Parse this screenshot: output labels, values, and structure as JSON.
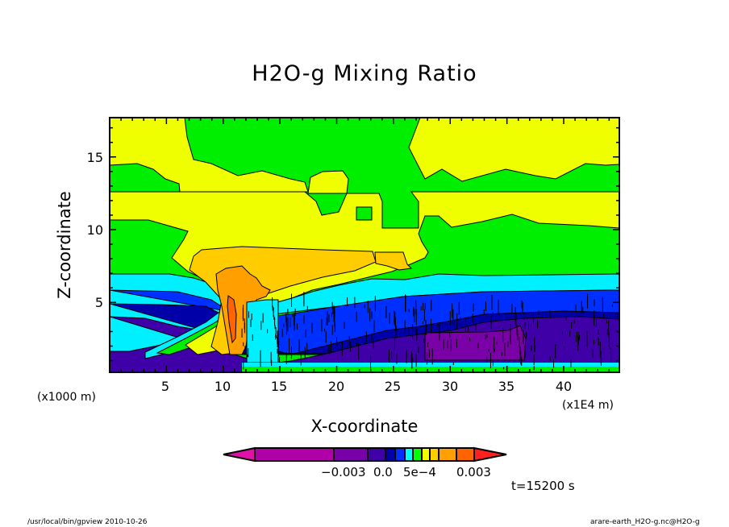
{
  "chart_data": {
    "type": "heatmap",
    "subtype": "filled-contour",
    "title": "H2O-g Mixing Ratio",
    "xlabel": "X-coordinate",
    "ylabel": "Z-coordinate",
    "x_unit_left": "(x1000 m)",
    "x_unit_right": "(x1E4 m)",
    "xlim": [
      0,
      44.9
    ],
    "ylim": [
      0.2,
      17.7
    ],
    "xticks": [
      "5",
      "10",
      "15",
      "20",
      "25",
      "30",
      "35",
      "40"
    ],
    "yticks": [
      "5",
      "10",
      "15"
    ],
    "colorbar": {
      "colors": [
        "#e010a8",
        "#b000a8",
        "#7800a8",
        "#4000a8",
        "#0000a8",
        "#0030ff",
        "#00ffff",
        "#00ff00",
        "#f0ff00",
        "#ffcc00",
        "#ffa000",
        "#ff6400",
        "#ff2020"
      ],
      "labels": [
        "−0.003",
        "0.0",
        "5e−4",
        "0.003"
      ]
    },
    "annotation_time": "t=15200 s"
  },
  "footer": {
    "left": "/usr/local/bin/gpview  2010-10-26",
    "right": "arare-earth_H2O-g.nc@H2O-g"
  }
}
